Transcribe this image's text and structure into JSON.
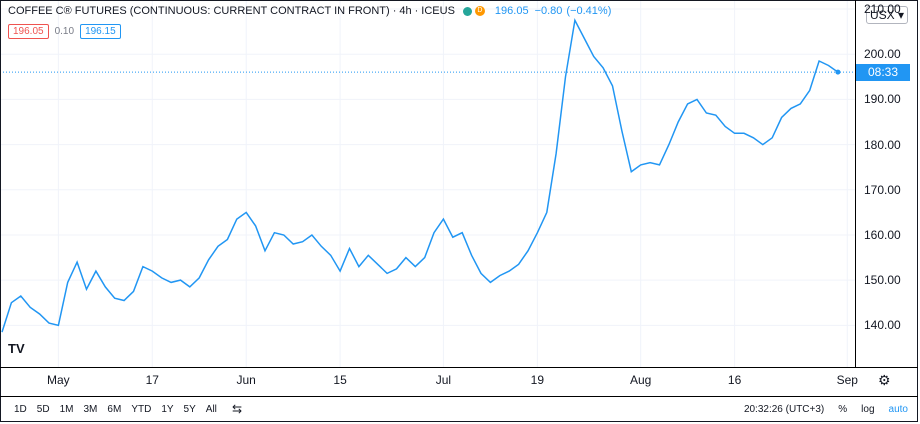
{
  "header": {
    "symbol": "COFFEE C® FUTURES (CONTINUOUS: CURRENT CONTRACT IN FRONT)",
    "interval": "4h",
    "exchange": "ICEUS",
    "delay_badge": "D",
    "last": "196.05",
    "change": "−0.80",
    "change_pct": "(−0.41%)",
    "status_color": "#26a69a",
    "delay_color": "#ff9800"
  },
  "quote": {
    "bid": "196.05",
    "spread": "0.10",
    "ask": "196.15"
  },
  "currency": "USX",
  "price_tag": {
    "time": "08:33",
    "color": "#2196f3"
  },
  "time_ranges": [
    "1D",
    "5D",
    "1M",
    "3M",
    "6M",
    "YTD",
    "1Y",
    "5Y",
    "All"
  ],
  "clock": "20:32:26 (UTC+3)",
  "scale_options": {
    "percent": "%",
    "log": "log",
    "auto": "auto"
  },
  "logo_text": "TV",
  "chart_data": {
    "type": "line",
    "title": "COFFEE C® FUTURES (CONTINUOUS: CURRENT CONTRACT IN FRONT)",
    "xlabel": "",
    "ylabel": "",
    "ylim": [
      131,
      212
    ],
    "y_ticks": [
      140,
      150,
      160,
      170,
      180,
      190,
      200,
      210
    ],
    "y_tick_labels": [
      "140.00",
      "150.00",
      "160.00",
      "170.00",
      "180.00",
      "190.00",
      "200.00",
      "210.00"
    ],
    "x_ticks": [
      {
        "label": "May",
        "i": 6
      },
      {
        "label": "17",
        "i": 16
      },
      {
        "label": "Jun",
        "i": 26
      },
      {
        "label": "15",
        "i": 36
      },
      {
        "label": "Jul",
        "i": 47
      },
      {
        "label": "19",
        "i": 57
      },
      {
        "label": "Aug",
        "i": 68
      },
      {
        "label": "16",
        "i": 78
      },
      {
        "label": "Sep",
        "i": 90
      }
    ],
    "x_range": [
      0,
      90.5
    ],
    "last_value": 196.05,
    "line_color": "#2196f3",
    "grid": true,
    "series": [
      {
        "values": [
          138.5,
          145.0,
          146.5,
          144.0,
          142.5,
          140.5,
          140.0,
          149.5,
          154.0,
          148.0,
          152.0,
          148.5,
          146.0,
          145.5,
          147.5,
          153.0,
          152.0,
          150.5,
          149.5,
          150.0,
          148.5,
          150.5,
          154.5,
          157.5,
          159.0,
          163.5,
          165.0,
          162.0,
          156.5,
          160.5,
          160.0,
          158.0,
          158.5,
          160.0,
          157.5,
          155.5,
          152.0,
          157.0,
          153.0,
          155.5,
          153.5,
          151.5,
          152.5,
          155.0,
          153.0,
          155.0,
          160.5,
          163.5,
          159.5,
          160.5,
          155.5,
          151.5,
          149.5,
          151.0,
          152.0,
          153.5,
          156.5,
          160.5,
          165.0,
          178.0,
          195.0,
          207.5,
          203.5,
          199.5,
          197.0,
          193.0,
          183.0,
          174.0,
          175.5,
          176.0,
          175.5,
          180.0,
          185.0,
          189.0,
          190.0,
          187.0,
          186.5,
          184.0,
          182.5,
          182.5,
          181.5,
          180.0,
          181.5,
          186.0,
          188.0,
          189.0,
          192.0,
          198.5,
          197.5,
          196.05
        ]
      }
    ]
  }
}
